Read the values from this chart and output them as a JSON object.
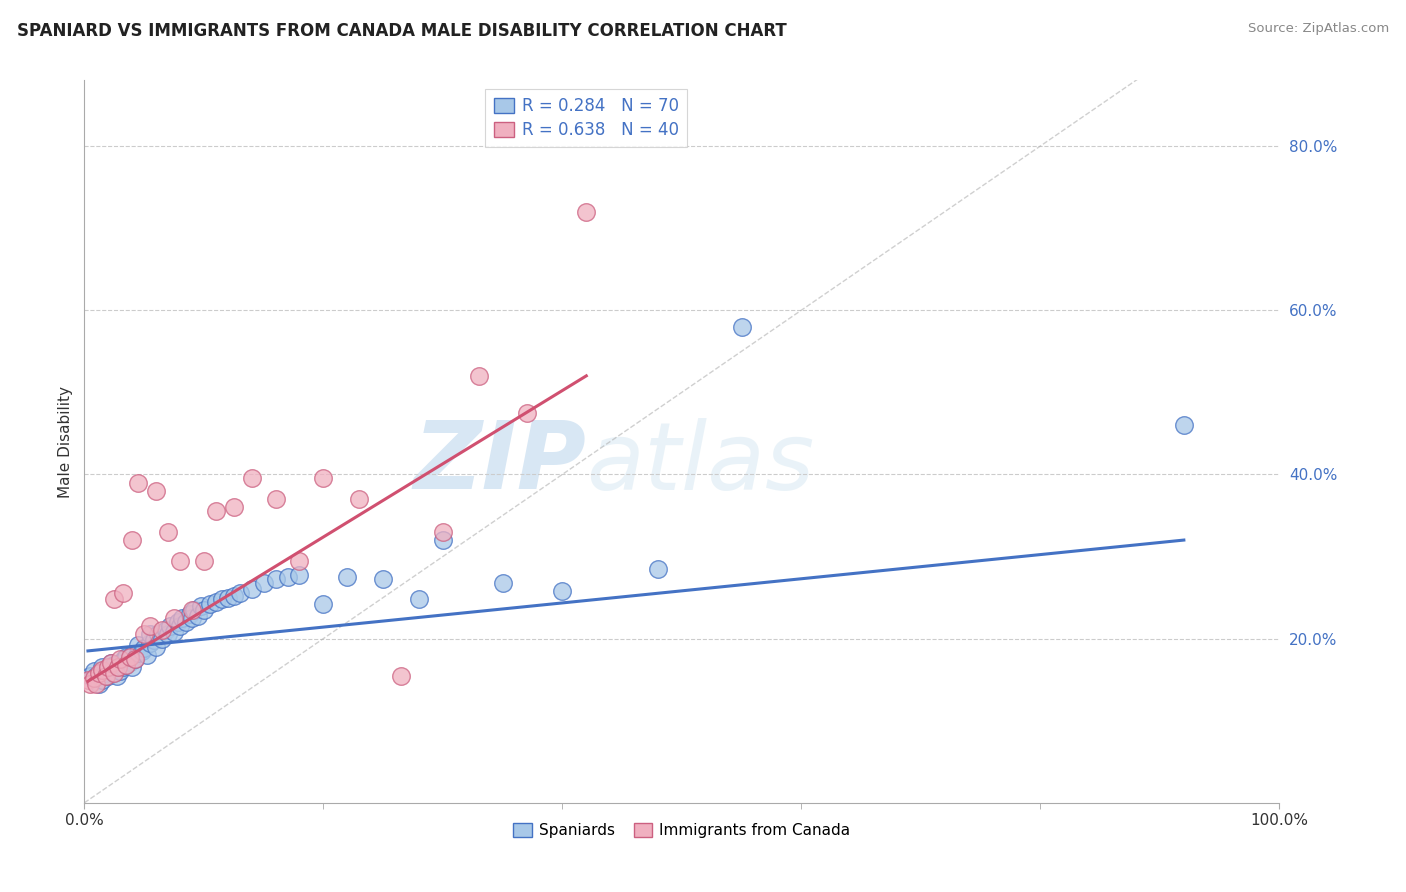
{
  "title": "SPANIARD VS IMMIGRANTS FROM CANADA MALE DISABILITY CORRELATION CHART",
  "source": "Source: ZipAtlas.com",
  "ylabel": "Male Disability",
  "y_ticks": [
    0.2,
    0.4,
    0.6,
    0.8
  ],
  "y_tick_labels": [
    "20.0%",
    "40.0%",
    "60.0%",
    "80.0%"
  ],
  "xlim": [
    0.0,
    1.0
  ],
  "ylim": [
    0.0,
    0.88
  ],
  "legend_r1": "R = 0.284",
  "legend_n1": "N = 70",
  "legend_r2": "R = 0.638",
  "legend_n2": "N = 40",
  "color_spaniards": "#a8c8e8",
  "color_immigrants": "#f0b0c0",
  "color_line_spaniards": "#4472c4",
  "color_line_immigrants": "#d05070",
  "color_diagonal": "#b0b0b0",
  "watermark_zip": "ZIP",
  "watermark_atlas": "atlas",
  "spaniards_x": [
    0.005,
    0.008,
    0.01,
    0.012,
    0.015,
    0.015,
    0.018,
    0.02,
    0.022,
    0.022,
    0.025,
    0.025,
    0.027,
    0.028,
    0.03,
    0.03,
    0.032,
    0.033,
    0.035,
    0.035,
    0.038,
    0.04,
    0.04,
    0.042,
    0.045,
    0.045,
    0.048,
    0.05,
    0.052,
    0.055,
    0.055,
    0.058,
    0.06,
    0.062,
    0.065,
    0.068,
    0.07,
    0.072,
    0.075,
    0.078,
    0.08,
    0.082,
    0.085,
    0.088,
    0.09,
    0.092,
    0.095,
    0.098,
    0.1,
    0.105,
    0.11,
    0.115,
    0.12,
    0.125,
    0.13,
    0.14,
    0.15,
    0.16,
    0.17,
    0.18,
    0.2,
    0.22,
    0.25,
    0.28,
    0.3,
    0.35,
    0.4,
    0.48,
    0.55,
    0.92
  ],
  "spaniards_y": [
    0.155,
    0.16,
    0.155,
    0.145,
    0.15,
    0.165,
    0.158,
    0.155,
    0.162,
    0.17,
    0.158,
    0.168,
    0.155,
    0.165,
    0.16,
    0.17,
    0.165,
    0.175,
    0.168,
    0.178,
    0.172,
    0.165,
    0.18,
    0.175,
    0.182,
    0.192,
    0.185,
    0.188,
    0.18,
    0.195,
    0.205,
    0.198,
    0.19,
    0.205,
    0.2,
    0.21,
    0.205,
    0.215,
    0.208,
    0.22,
    0.215,
    0.225,
    0.22,
    0.23,
    0.225,
    0.235,
    0.228,
    0.24,
    0.235,
    0.242,
    0.245,
    0.248,
    0.25,
    0.252,
    0.255,
    0.26,
    0.268,
    0.272,
    0.275,
    0.278,
    0.242,
    0.275,
    0.272,
    0.248,
    0.32,
    0.268,
    0.258,
    0.285,
    0.58,
    0.46
  ],
  "immigrants_x": [
    0.003,
    0.005,
    0.008,
    0.01,
    0.012,
    0.015,
    0.018,
    0.02,
    0.022,
    0.025,
    0.025,
    0.028,
    0.03,
    0.032,
    0.035,
    0.038,
    0.04,
    0.042,
    0.045,
    0.05,
    0.055,
    0.06,
    0.065,
    0.07,
    0.075,
    0.08,
    0.09,
    0.1,
    0.11,
    0.125,
    0.14,
    0.16,
    0.18,
    0.2,
    0.23,
    0.265,
    0.3,
    0.33,
    0.37,
    0.42
  ],
  "immigrants_y": [
    0.15,
    0.145,
    0.152,
    0.145,
    0.158,
    0.162,
    0.155,
    0.165,
    0.17,
    0.158,
    0.248,
    0.165,
    0.175,
    0.255,
    0.168,
    0.178,
    0.32,
    0.175,
    0.39,
    0.205,
    0.215,
    0.38,
    0.21,
    0.33,
    0.225,
    0.295,
    0.235,
    0.295,
    0.355,
    0.36,
    0.395,
    0.37,
    0.295,
    0.395,
    0.37,
    0.155,
    0.33,
    0.52,
    0.475,
    0.72
  ],
  "line_sp_x_start": 0.003,
  "line_sp_x_end": 0.92,
  "line_sp_y_start": 0.185,
  "line_sp_y_end": 0.32,
  "line_im_x_start": 0.003,
  "line_im_x_end": 0.42,
  "line_im_y_start": 0.148,
  "line_im_y_end": 0.52
}
